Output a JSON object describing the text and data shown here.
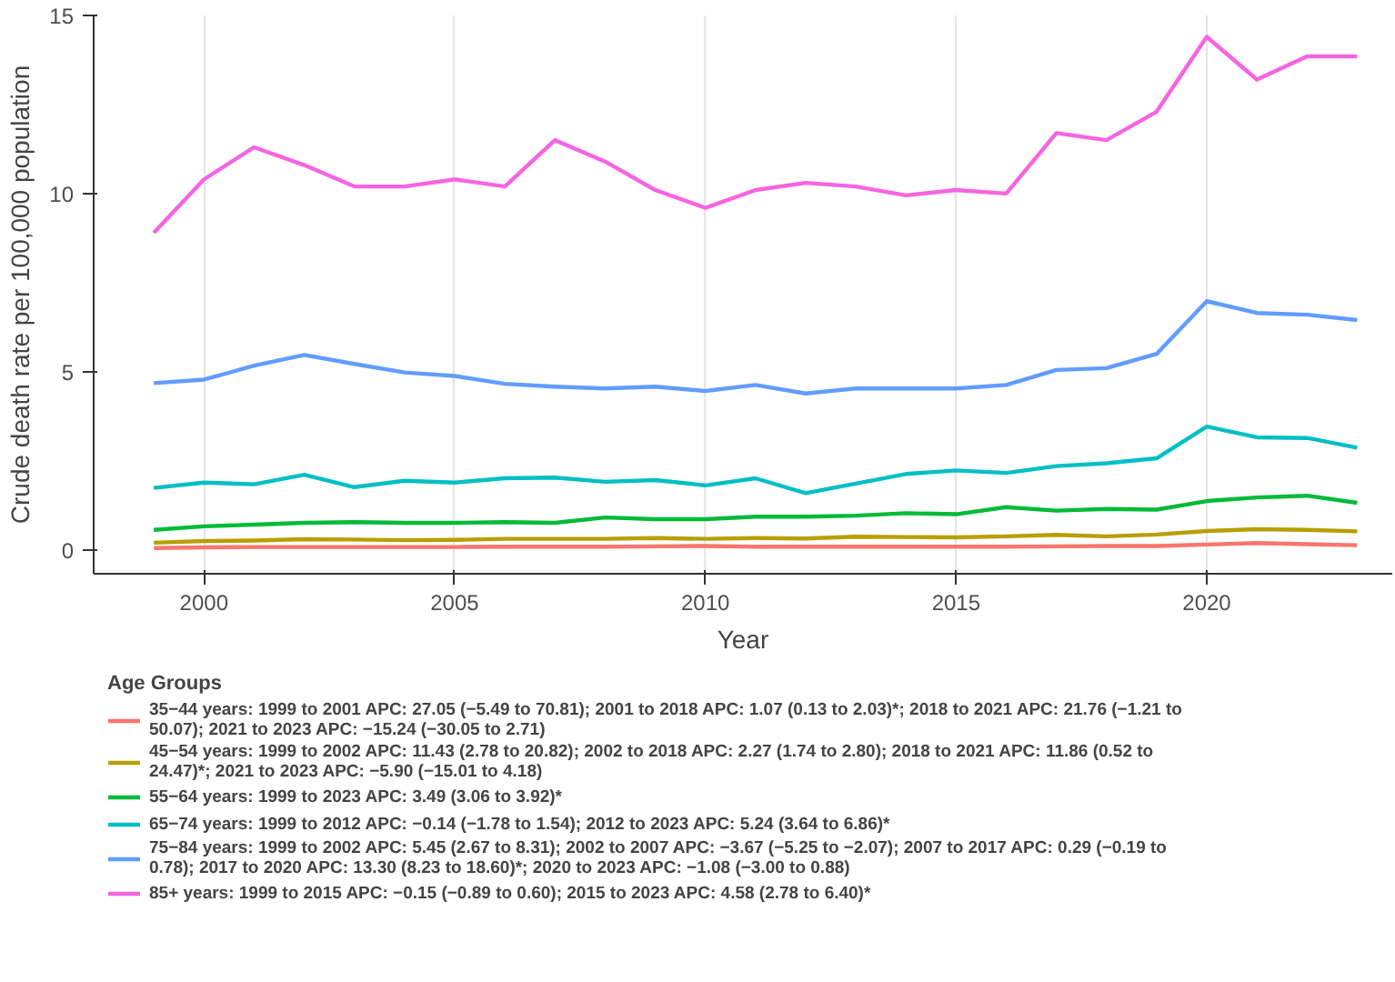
{
  "chart_data": {
    "type": "line",
    "xlabel": "Year",
    "ylabel": "Crude death rate per 100,000 population",
    "legend_title": "Age Groups",
    "x": [
      1999,
      2000,
      2001,
      2002,
      2003,
      2004,
      2005,
      2006,
      2007,
      2008,
      2009,
      2010,
      2011,
      2012,
      2013,
      2014,
      2015,
      2016,
      2017,
      2018,
      2019,
      2020,
      2021,
      2022,
      2023
    ],
    "xlim": [
      1997.8,
      2023.7
    ],
    "xticks": [
      2000,
      2005,
      2010,
      2015,
      2020
    ],
    "ylim": [
      -0.67,
      15
    ],
    "yticks": [
      0,
      5,
      10,
      15
    ],
    "grid": "x",
    "legend": "bottom",
    "line_style": "solid",
    "series": [
      {
        "name": "35−44 years: 1999 to 2001 APC: 27.05 (−5.49 to 70.81); 2001 to 2018 APC: 1.07 (0.13 to 2.03)*; 2018 to 2021 APC: 21.76 (−1.21 to 50.07); 2021 to 2023 APC: −15.24 (−30.05 to 2.71)",
        "color": "#f8766d",
        "values": [
          0.05,
          0.07,
          0.08,
          0.08,
          0.08,
          0.08,
          0.08,
          0.09,
          0.09,
          0.09,
          0.1,
          0.11,
          0.09,
          0.09,
          0.09,
          0.09,
          0.09,
          0.09,
          0.1,
          0.11,
          0.11,
          0.15,
          0.19,
          0.16,
          0.13
        ]
      },
      {
        "name": "45−54 years: 1999 to 2002 APC: 11.43 (2.78 to 20.82); 2002 to 2018 APC: 2.27 (1.74 to 2.80); 2018 to 2021 APC: 11.86 (0.52 to 24.47)*; 2021 to 2023 APC: −5.90 (−15.01 to 4.18)",
        "color": "#b79f00",
        "values": [
          0.2,
          0.25,
          0.26,
          0.3,
          0.29,
          0.27,
          0.28,
          0.31,
          0.31,
          0.31,
          0.33,
          0.31,
          0.33,
          0.32,
          0.37,
          0.36,
          0.35,
          0.38,
          0.42,
          0.38,
          0.43,
          0.53,
          0.58,
          0.56,
          0.52
        ]
      },
      {
        "name": "55−64 years: 1999 to 2023 APC: 3.49 (3.06 to 3.92)*",
        "color": "#00ba38",
        "values": [
          0.56,
          0.66,
          0.71,
          0.76,
          0.78,
          0.76,
          0.76,
          0.78,
          0.76,
          0.91,
          0.86,
          0.86,
          0.93,
          0.93,
          0.96,
          1.03,
          1.0,
          1.2,
          1.1,
          1.15,
          1.13,
          1.37,
          1.47,
          1.52,
          1.32
        ]
      },
      {
        "name": "65−74 years: 1999 to 2012 APC: −0.14 (−1.78 to 1.54); 2012 to 2023 APC: 5.24 (3.64 to 6.86)*",
        "color": "#00bfc4",
        "values": [
          1.74,
          1.89,
          1.84,
          2.11,
          1.76,
          1.94,
          1.89,
          2.01,
          2.03,
          1.91,
          1.96,
          1.81,
          2.01,
          1.59,
          1.86,
          2.13,
          2.23,
          2.16,
          2.35,
          2.43,
          2.57,
          3.46,
          3.16,
          3.14,
          2.87
        ]
      },
      {
        "name": "75−84 years: 1999 to 2002 APC: 5.45 (2.67 to 8.31); 2002 to 2007 APC: −3.67 (−5.25 to −2.07); 2007 to 2017 APC: 0.29 (−0.19 to 0.78); 2017 to 2020 APC: 13.30 (8.23 to 18.60)*; 2020 to 2023 APC: −1.08 (−3.00 to 0.88)",
        "color": "#619cff",
        "values": [
          4.68,
          4.78,
          5.17,
          5.47,
          5.22,
          4.98,
          4.88,
          4.66,
          4.58,
          4.53,
          4.58,
          4.46,
          4.63,
          4.39,
          4.53,
          4.53,
          4.53,
          4.63,
          5.05,
          5.1,
          5.5,
          6.98,
          6.65,
          6.6,
          6.45
        ]
      },
      {
        "name": "85+ years: 1999 to 2015 APC: −0.15 (−0.89 to 0.60); 2015 to 2023 APC: 4.58 (2.78 to 6.40)*",
        "color": "#f564e3",
        "values": [
          8.9,
          10.4,
          11.3,
          10.8,
          10.2,
          10.2,
          10.4,
          10.2,
          11.5,
          10.9,
          10.1,
          9.6,
          10.1,
          10.3,
          10.2,
          9.95,
          10.1,
          10.0,
          11.7,
          11.5,
          12.3,
          14.4,
          13.2,
          13.85,
          13.85
        ]
      }
    ]
  }
}
